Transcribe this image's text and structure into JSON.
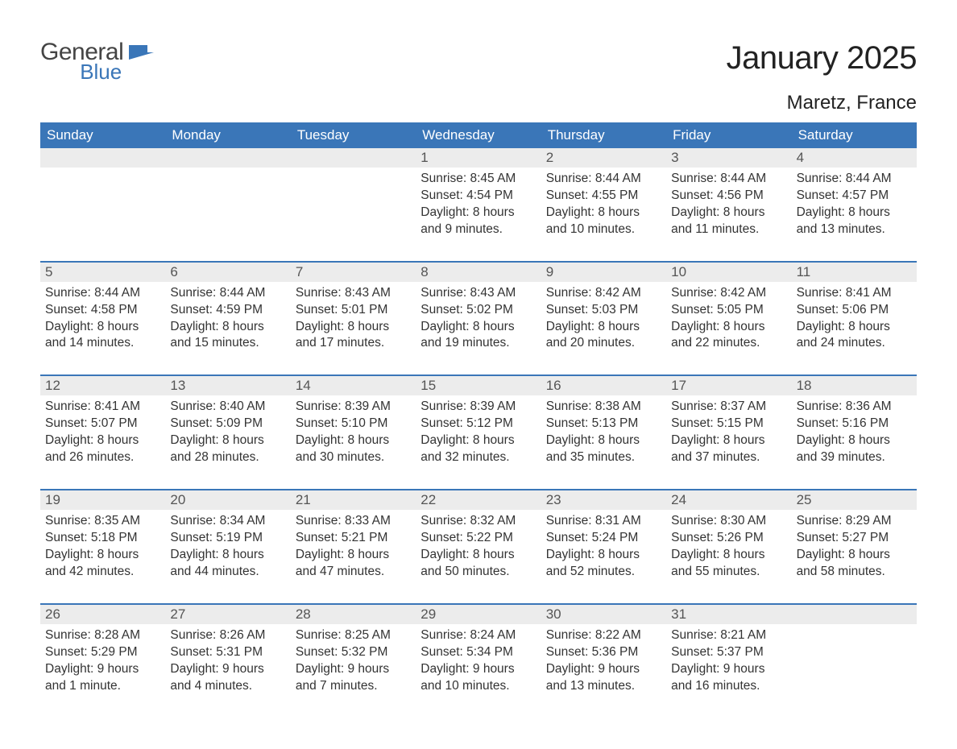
{
  "logo": {
    "general": "General",
    "blue": "Blue",
    "flag_color": "#3a76b8"
  },
  "title": "January 2025",
  "location": "Maretz, France",
  "colors": {
    "header_bg": "#3a76b8",
    "header_text": "#ffffff",
    "daynum_bg": "#ececec",
    "daynum_text": "#555555",
    "body_text": "#333333",
    "row_border": "#3a76b8",
    "page_bg": "#ffffff"
  },
  "weekdays": [
    "Sunday",
    "Monday",
    "Tuesday",
    "Wednesday",
    "Thursday",
    "Friday",
    "Saturday"
  ],
  "weeks": [
    [
      null,
      null,
      null,
      {
        "n": "1",
        "sunrise": "8:45 AM",
        "sunset": "4:54 PM",
        "daylight": "8 hours and 9 minutes."
      },
      {
        "n": "2",
        "sunrise": "8:44 AM",
        "sunset": "4:55 PM",
        "daylight": "8 hours and 10 minutes."
      },
      {
        "n": "3",
        "sunrise": "8:44 AM",
        "sunset": "4:56 PM",
        "daylight": "8 hours and 11 minutes."
      },
      {
        "n": "4",
        "sunrise": "8:44 AM",
        "sunset": "4:57 PM",
        "daylight": "8 hours and 13 minutes."
      }
    ],
    [
      {
        "n": "5",
        "sunrise": "8:44 AM",
        "sunset": "4:58 PM",
        "daylight": "8 hours and 14 minutes."
      },
      {
        "n": "6",
        "sunrise": "8:44 AM",
        "sunset": "4:59 PM",
        "daylight": "8 hours and 15 minutes."
      },
      {
        "n": "7",
        "sunrise": "8:43 AM",
        "sunset": "5:01 PM",
        "daylight": "8 hours and 17 minutes."
      },
      {
        "n": "8",
        "sunrise": "8:43 AM",
        "sunset": "5:02 PM",
        "daylight": "8 hours and 19 minutes."
      },
      {
        "n": "9",
        "sunrise": "8:42 AM",
        "sunset": "5:03 PM",
        "daylight": "8 hours and 20 minutes."
      },
      {
        "n": "10",
        "sunrise": "8:42 AM",
        "sunset": "5:05 PM",
        "daylight": "8 hours and 22 minutes."
      },
      {
        "n": "11",
        "sunrise": "8:41 AM",
        "sunset": "5:06 PM",
        "daylight": "8 hours and 24 minutes."
      }
    ],
    [
      {
        "n": "12",
        "sunrise": "8:41 AM",
        "sunset": "5:07 PM",
        "daylight": "8 hours and 26 minutes."
      },
      {
        "n": "13",
        "sunrise": "8:40 AM",
        "sunset": "5:09 PM",
        "daylight": "8 hours and 28 minutes."
      },
      {
        "n": "14",
        "sunrise": "8:39 AM",
        "sunset": "5:10 PM",
        "daylight": "8 hours and 30 minutes."
      },
      {
        "n": "15",
        "sunrise": "8:39 AM",
        "sunset": "5:12 PM",
        "daylight": "8 hours and 32 minutes."
      },
      {
        "n": "16",
        "sunrise": "8:38 AM",
        "sunset": "5:13 PM",
        "daylight": "8 hours and 35 minutes."
      },
      {
        "n": "17",
        "sunrise": "8:37 AM",
        "sunset": "5:15 PM",
        "daylight": "8 hours and 37 minutes."
      },
      {
        "n": "18",
        "sunrise": "8:36 AM",
        "sunset": "5:16 PM",
        "daylight": "8 hours and 39 minutes."
      }
    ],
    [
      {
        "n": "19",
        "sunrise": "8:35 AM",
        "sunset": "5:18 PM",
        "daylight": "8 hours and 42 minutes."
      },
      {
        "n": "20",
        "sunrise": "8:34 AM",
        "sunset": "5:19 PM",
        "daylight": "8 hours and 44 minutes."
      },
      {
        "n": "21",
        "sunrise": "8:33 AM",
        "sunset": "5:21 PM",
        "daylight": "8 hours and 47 minutes."
      },
      {
        "n": "22",
        "sunrise": "8:32 AM",
        "sunset": "5:22 PM",
        "daylight": "8 hours and 50 minutes."
      },
      {
        "n": "23",
        "sunrise": "8:31 AM",
        "sunset": "5:24 PM",
        "daylight": "8 hours and 52 minutes."
      },
      {
        "n": "24",
        "sunrise": "8:30 AM",
        "sunset": "5:26 PM",
        "daylight": "8 hours and 55 minutes."
      },
      {
        "n": "25",
        "sunrise": "8:29 AM",
        "sunset": "5:27 PM",
        "daylight": "8 hours and 58 minutes."
      }
    ],
    [
      {
        "n": "26",
        "sunrise": "8:28 AM",
        "sunset": "5:29 PM",
        "daylight": "9 hours and 1 minute."
      },
      {
        "n": "27",
        "sunrise": "8:26 AM",
        "sunset": "5:31 PM",
        "daylight": "9 hours and 4 minutes."
      },
      {
        "n": "28",
        "sunrise": "8:25 AM",
        "sunset": "5:32 PM",
        "daylight": "9 hours and 7 minutes."
      },
      {
        "n": "29",
        "sunrise": "8:24 AM",
        "sunset": "5:34 PM",
        "daylight": "9 hours and 10 minutes."
      },
      {
        "n": "30",
        "sunrise": "8:22 AM",
        "sunset": "5:36 PM",
        "daylight": "9 hours and 13 minutes."
      },
      {
        "n": "31",
        "sunrise": "8:21 AM",
        "sunset": "5:37 PM",
        "daylight": "9 hours and 16 minutes."
      },
      null
    ]
  ],
  "labels": {
    "sunrise": "Sunrise: ",
    "sunset": "Sunset: ",
    "daylight": "Daylight: "
  }
}
